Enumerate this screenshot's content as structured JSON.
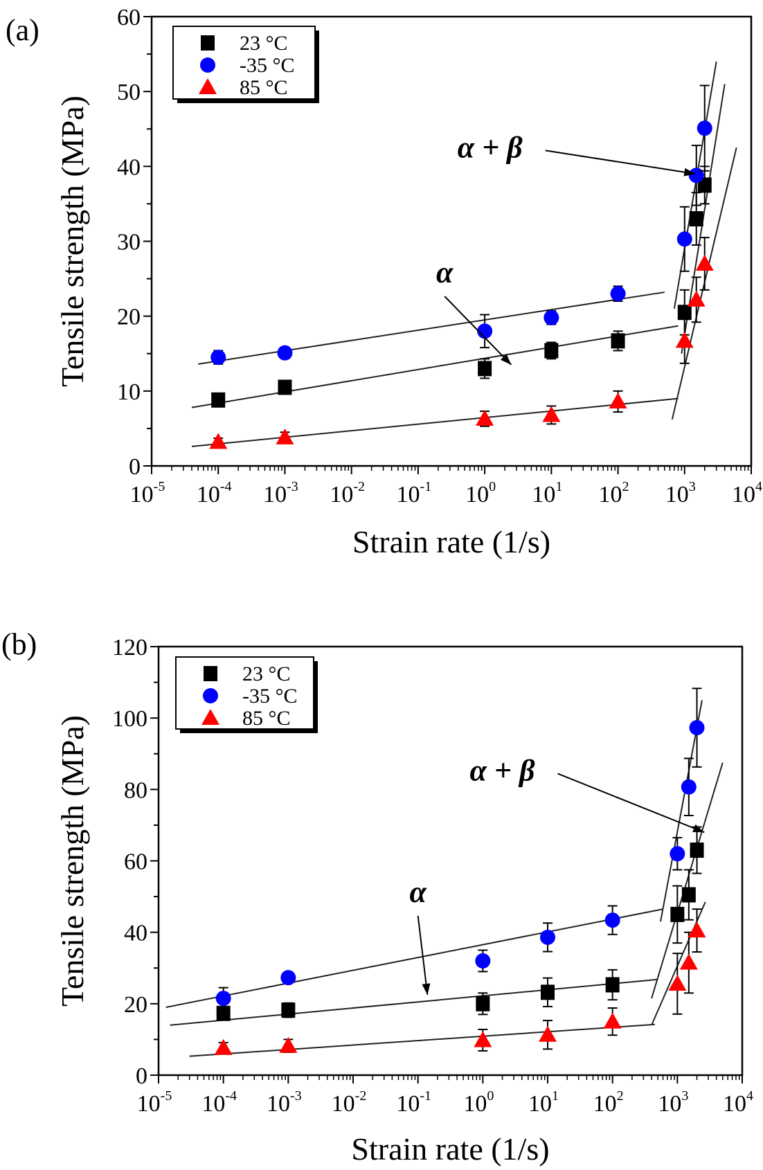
{
  "chart_data": [
    {
      "type": "scatter",
      "panel_label": "(a)",
      "title": "",
      "xlabel": "Strain rate (1/s)",
      "ylabel": "Tensile strength (MPa)",
      "xscale": "log",
      "xlim": [
        1e-05,
        10000.0
      ],
      "ylim": [
        0,
        60
      ],
      "yticks": [
        0,
        10,
        20,
        30,
        40,
        50,
        60
      ],
      "xtick_exponents": [
        -5,
        -4,
        -3,
        -2,
        -1,
        0,
        1,
        2,
        3,
        4
      ],
      "xtick_base": "10",
      "legend_position": "top-left",
      "x": [
        0.0001,
        0.001,
        1,
        10,
        100,
        1000,
        1500,
        2000
      ],
      "series": [
        {
          "name": "23 °C",
          "marker": "square",
          "color": "#000000",
          "values": [
            8.8,
            10.5,
            13.0,
            15.4,
            16.7,
            20.5,
            33.0,
            37.5
          ],
          "errors": [
            0.8,
            0.6,
            1.3,
            1.1,
            1.3,
            3.0,
            3.5,
            2.5
          ]
        },
        {
          "name": "-35 °C",
          "marker": "circle",
          "color": "#0000ff",
          "values": [
            14.5,
            15.1,
            18.0,
            19.8,
            23.0,
            30.3,
            38.8,
            45.1
          ],
          "errors": [
            0.9,
            0.5,
            2.2,
            0.9,
            1.0,
            4.3,
            4.0,
            5.7
          ]
        },
        {
          "name": "85 °C",
          "marker": "triangle",
          "color": "#ff0000",
          "values": [
            3.2,
            3.8,
            6.3,
            6.8,
            8.6,
            16.7,
            22.2,
            27.0
          ],
          "errors": [
            0.5,
            0.7,
            1.0,
            1.2,
            1.4,
            3.0,
            3.0,
            3.5
          ]
        }
      ],
      "fit_lines_alpha": [
        {
          "series": "-35 °C",
          "x": [
            5e-05,
            500
          ],
          "y": [
            13.6,
            23.2
          ]
        },
        {
          "series": "23 °C",
          "x": [
            4e-05,
            800
          ],
          "y": [
            7.8,
            18.7
          ]
        },
        {
          "series": "85 °C",
          "x": [
            4e-05,
            800
          ],
          "y": [
            2.6,
            9.0
          ]
        }
      ],
      "fit_lines_alpha_beta": [
        {
          "series": "-35 °C",
          "x": [
            700,
            3000
          ],
          "y": [
            21.0,
            54.0
          ]
        },
        {
          "series": "23 °C",
          "x": [
            900,
            4000
          ],
          "y": [
            15.0,
            51.0
          ]
        },
        {
          "series": "85 °C",
          "x": [
            650,
            6000
          ],
          "y": [
            6.2,
            42.5
          ]
        }
      ],
      "annotations": [
        {
          "text": "α",
          "x": 0.25,
          "y": 24.5,
          "arrow_to": [
            2.5,
            13.5
          ]
        },
        {
          "text": "α + β",
          "x": 1.2,
          "y": 41.2,
          "arrow_to": [
            1450,
            39.0
          ]
        }
      ]
    },
    {
      "type": "scatter",
      "panel_label": "(b)",
      "title": "",
      "xlabel": "Strain rate (1/s)",
      "ylabel": "Tensile strength (MPa)",
      "xscale": "log",
      "xlim": [
        1e-05,
        10000.0
      ],
      "ylim": [
        0,
        120
      ],
      "yticks": [
        0,
        20,
        40,
        60,
        80,
        100,
        120
      ],
      "xtick_exponents": [
        -5,
        -4,
        -3,
        -2,
        -1,
        0,
        1,
        2,
        3,
        4
      ],
      "xtick_base": "10",
      "legend_position": "top-left",
      "x": [
        0.0001,
        0.001,
        1,
        10,
        100,
        1000,
        1500,
        2000
      ],
      "series": [
        {
          "name": "23 °C",
          "marker": "square",
          "color": "#000000",
          "values": [
            17.3,
            18.2,
            20.0,
            23.2,
            25.3,
            45.0,
            50.5,
            63.0
          ],
          "errors": [
            1.5,
            2.0,
            3.0,
            4.0,
            4.2,
            8.0,
            7.0,
            6.5
          ]
        },
        {
          "name": "-35 °C",
          "marker": "circle",
          "color": "#0000ff",
          "values": [
            21.5,
            27.3,
            32.0,
            38.6,
            43.4,
            62.0,
            80.7,
            97.3
          ],
          "errors": [
            3.0,
            1.3,
            3.0,
            4.0,
            4.0,
            4.5,
            8.0,
            11.0
          ]
        },
        {
          "name": "85 °C",
          "marker": "triangle",
          "color": "#ff0000",
          "values": [
            7.6,
            8.2,
            9.8,
            11.3,
            15.0,
            25.6,
            31.5,
            40.5
          ],
          "errors": [
            1.5,
            1.8,
            3.0,
            4.0,
            3.8,
            8.5,
            8.5,
            6.0
          ]
        }
      ],
      "fit_lines_alpha": [
        {
          "series": "-35 °C",
          "x": [
            1.3e-05,
            600
          ],
          "y": [
            19.0,
            46.5
          ]
        },
        {
          "series": "23 °C",
          "x": [
            1.5e-05,
            500
          ],
          "y": [
            14.0,
            26.8
          ]
        },
        {
          "series": "85 °C",
          "x": [
            3e-05,
            450
          ],
          "y": [
            5.3,
            14.2
          ]
        }
      ],
      "fit_lines_alpha_beta": [
        {
          "series": "-35 °C",
          "x": [
            550,
            2400
          ],
          "y": [
            43.0,
            105.0
          ]
        },
        {
          "series": "23 °C",
          "x": [
            400,
            5000
          ],
          "y": [
            21.5,
            87.5
          ]
        },
        {
          "series": "85 °C",
          "x": [
            400,
            2700
          ],
          "y": [
            14.0,
            48.5
          ]
        }
      ],
      "annotations": [
        {
          "text": "α",
          "x": 0.1,
          "y": 48.5,
          "arrow_to": [
            0.14,
            22.5
          ]
        },
        {
          "text": "α + β",
          "x": 2.0,
          "y": 82.5,
          "arrow_to": [
            2600,
            68.0
          ]
        }
      ]
    }
  ]
}
